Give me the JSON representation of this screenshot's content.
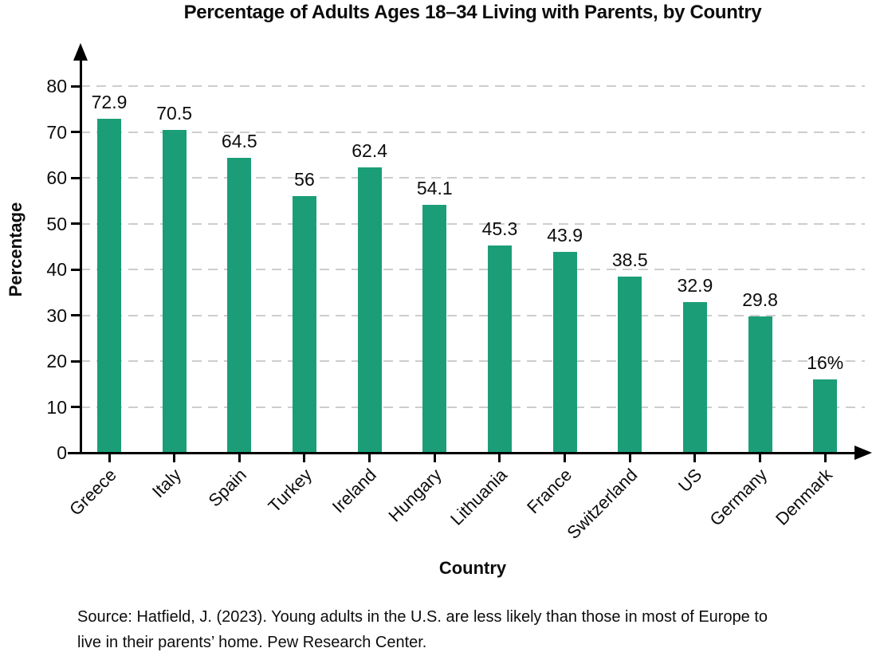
{
  "chart_data": {
    "type": "bar",
    "title": "Percentage of Adults Ages 18–34 Living with Parents, by Country",
    "xlabel": "Country",
    "ylabel": "Percentage",
    "categories": [
      "Greece",
      "Italy",
      "Spain",
      "Turkey",
      "Ireland",
      "Hungary",
      "Lithuania",
      "France",
      "Switzerland",
      "US",
      "Germany",
      "Denmark"
    ],
    "values": [
      72.9,
      70.5,
      64.5,
      56,
      62.4,
      54.1,
      45.3,
      43.9,
      38.5,
      32.9,
      29.8,
      16
    ],
    "value_labels": [
      "72.9",
      "70.5",
      "64.5",
      "56",
      "62.4",
      "54.1",
      "45.3",
      "43.9",
      "38.5",
      "32.9",
      "29.8",
      "16%"
    ],
    "ylim": [
      0,
      80
    ],
    "yticks": [
      0,
      10,
      20,
      30,
      40,
      50,
      60,
      70,
      80
    ],
    "grid": "horizontal-dashed",
    "legend": "none",
    "bar_color": "#1b9e77"
  },
  "colors": {
    "bar": "#1b9e77",
    "grid": "#cdcdcd",
    "axis": "#000000",
    "text": "#0d0d0d",
    "background": "#ffffff"
  },
  "source_note": {
    "line1": "Source: Hatfield, J. (2023). Young adults in the U.S. are less likely than those in most of Europe to",
    "line2": "live in their parents’ home. Pew Research Center."
  }
}
